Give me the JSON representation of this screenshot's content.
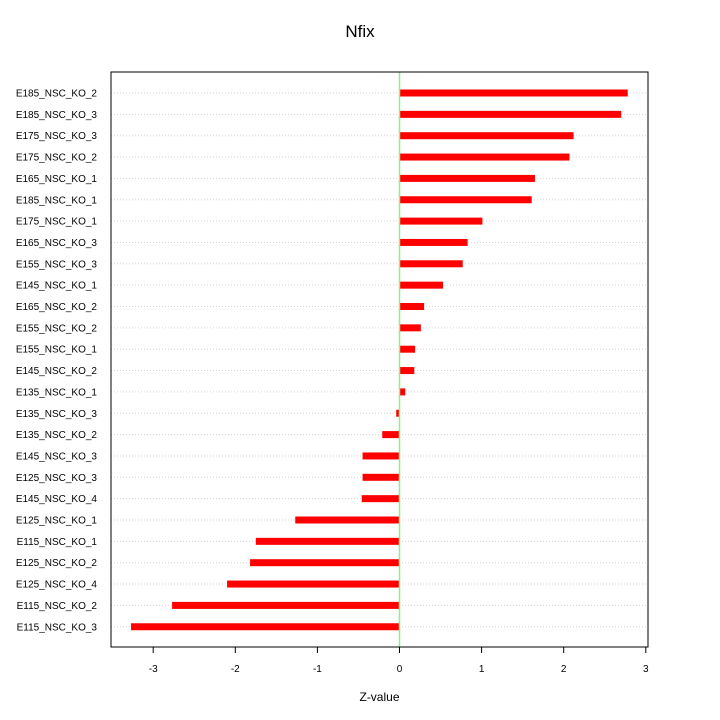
{
  "chart_data": {
    "type": "bar",
    "orientation": "horizontal",
    "title": "Nfix",
    "xlabel": "Z-value",
    "ylabel": "",
    "xlim": [
      -3.3,
      3.0
    ],
    "xticks": [
      -3,
      -2,
      -1,
      0,
      1,
      2,
      3
    ],
    "grid": true,
    "reference_line": {
      "x": 0,
      "color": "#90ee90"
    },
    "bar_color": "#ff0000",
    "categories": [
      "E185_NSC_KO_2",
      "E185_NSC_KO_3",
      "E175_NSC_KO_3",
      "E175_NSC_KO_2",
      "E165_NSC_KO_1",
      "E185_NSC_KO_1",
      "E175_NSC_KO_1",
      "E165_NSC_KO_3",
      "E155_NSC_KO_3",
      "E145_NSC_KO_1",
      "E165_NSC_KO_2",
      "E155_NSC_KO_2",
      "E155_NSC_KO_1",
      "E145_NSC_KO_2",
      "E135_NSC_KO_1",
      "E135_NSC_KO_3",
      "E135_NSC_KO_2",
      "E145_NSC_KO_3",
      "E125_NSC_KO_3",
      "E145_NSC_KO_4",
      "E125_NSC_KO_1",
      "E115_NSC_KO_1",
      "E125_NSC_KO_2",
      "E125_NSC_KO_4",
      "E115_NSC_KO_2",
      "E115_NSC_KO_3"
    ],
    "values": [
      2.78,
      2.7,
      2.12,
      2.07,
      1.65,
      1.61,
      1.01,
      0.83,
      0.77,
      0.53,
      0.3,
      0.26,
      0.19,
      0.18,
      0.07,
      -0.04,
      -0.21,
      -0.45,
      -0.45,
      -0.46,
      -1.27,
      -1.75,
      -1.82,
      -2.1,
      -2.77,
      -3.27
    ]
  }
}
